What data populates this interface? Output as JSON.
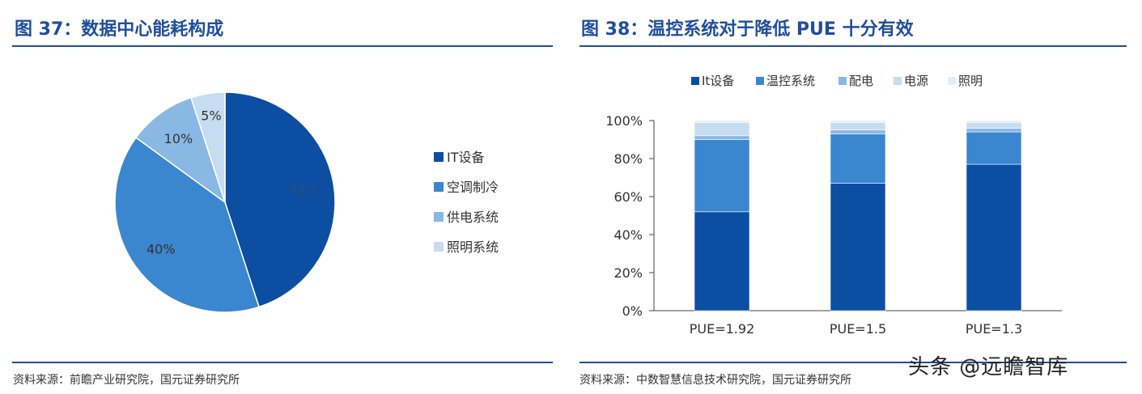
{
  "left": {
    "title": "图 37：数据中心能耗构成",
    "source": "资料来源：前瞻产业研究院，国元证券研究所"
  },
  "right": {
    "title": "图 38：温控系统对于降低 PUE 十分有效",
    "source": "资料来源：中数智慧信息技术研究院，国元证券研究所"
  },
  "watermark": "头条 @远瞻智库",
  "chart_data": [
    {
      "type": "pie",
      "title": "",
      "slices": [
        {
          "name": "IT设备",
          "value": 45,
          "label": "45%",
          "color": "#0b4ea2"
        },
        {
          "name": "空调制冷",
          "value": 40,
          "label": "40%",
          "color": "#3a86cf"
        },
        {
          "name": "供电系统",
          "value": 10,
          "label": "10%",
          "color": "#8ab8e4"
        },
        {
          "name": "照明系统",
          "value": 5,
          "label": "5%",
          "color": "#c6dcf1"
        }
      ],
      "legend_position": "right"
    },
    {
      "type": "bar",
      "stacked": true,
      "title": "",
      "categories": [
        "PUE=1.92",
        "PUE=1.5",
        "PUE=1.3"
      ],
      "series": [
        {
          "name": "It设备",
          "values": [
            52,
            67,
            77
          ],
          "color": "#0b4ea2"
        },
        {
          "name": "温控系统",
          "values": [
            38,
            26,
            17
          ],
          "color": "#3a86cf"
        },
        {
          "name": "配电",
          "values": [
            2,
            2,
            2
          ],
          "color": "#8ab8e4"
        },
        {
          "name": "电源",
          "values": [
            7,
            4,
            3
          ],
          "color": "#c6dcf1"
        },
        {
          "name": "照明",
          "values": [
            1,
            1,
            1
          ],
          "color": "#e3edf8"
        }
      ],
      "yticks": [
        "0%",
        "20%",
        "40%",
        "60%",
        "80%",
        "100%"
      ],
      "ylim": [
        0,
        100
      ],
      "legend_position": "top",
      "grid": false
    }
  ]
}
